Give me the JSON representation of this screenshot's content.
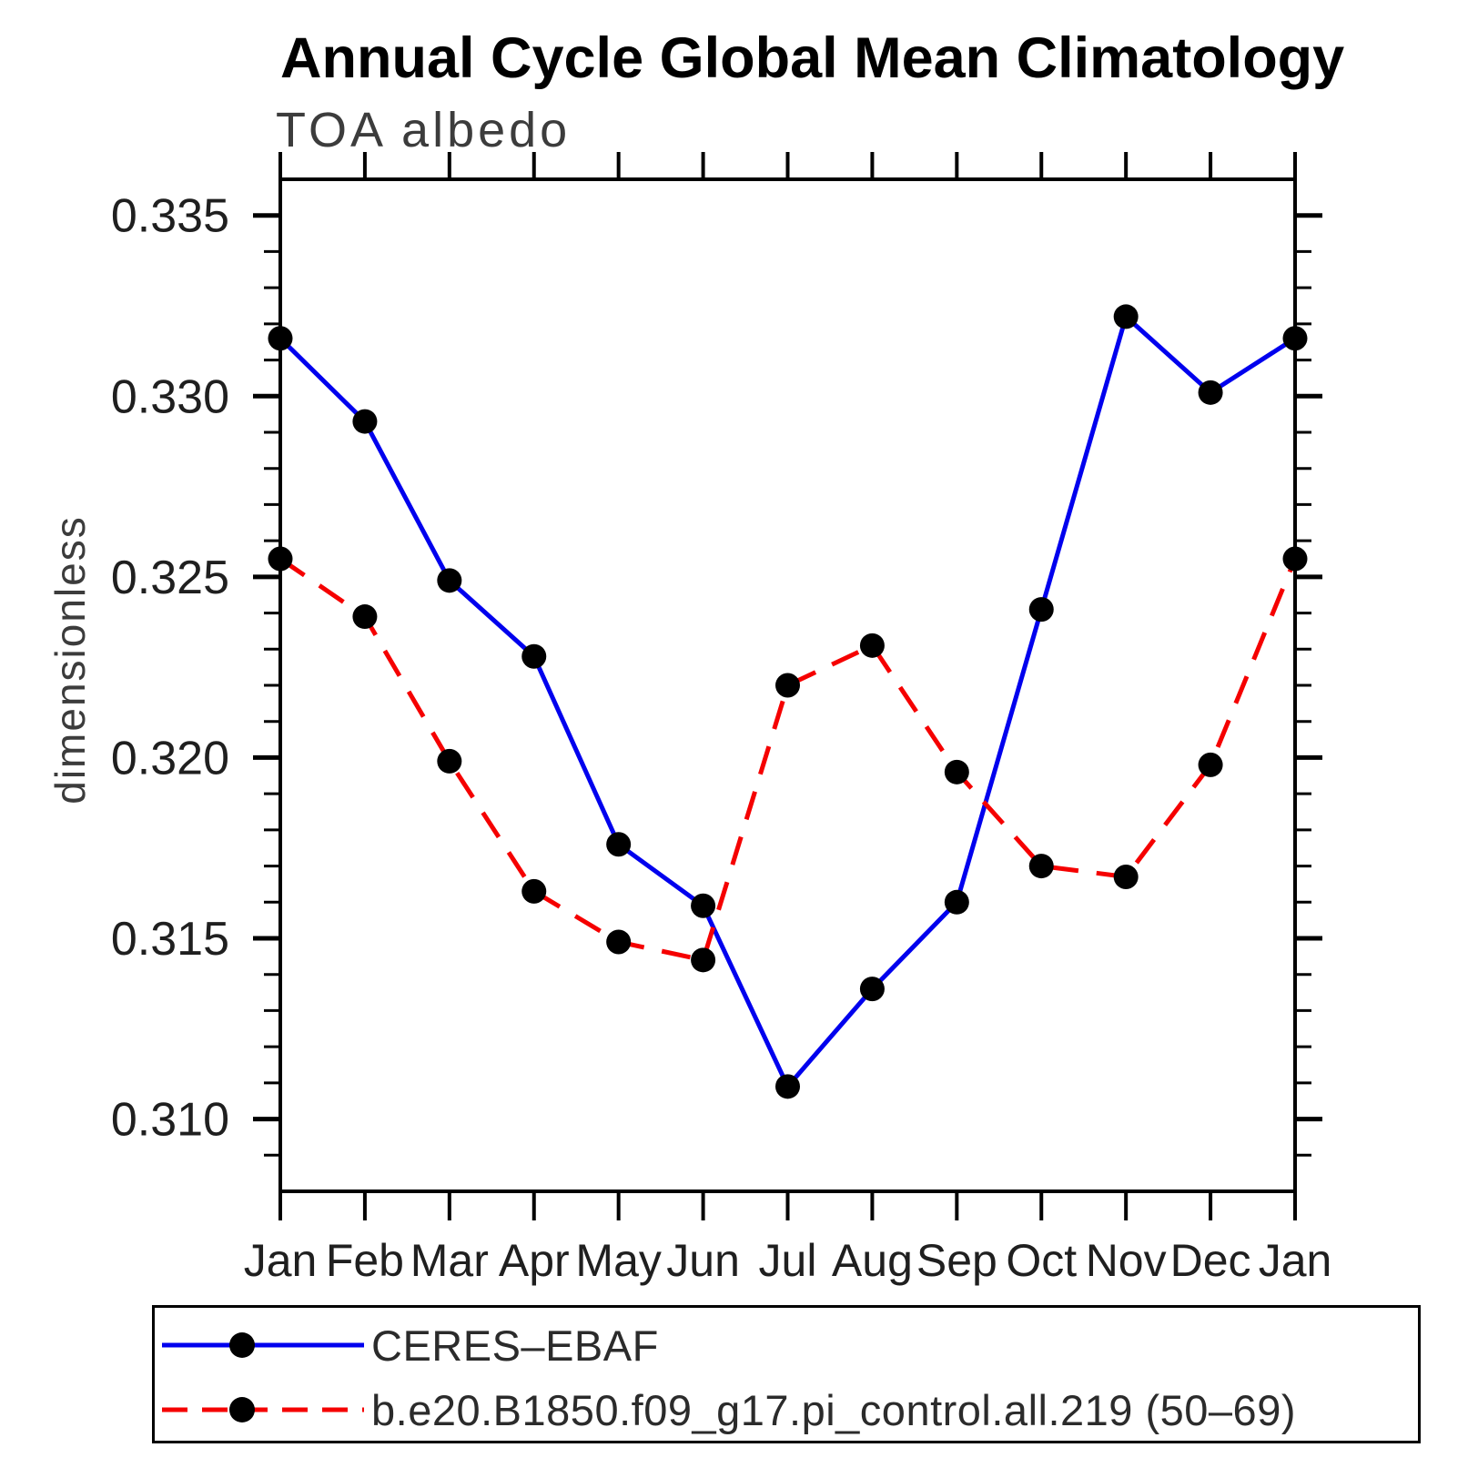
{
  "title": "Annual Cycle Global Mean Climatology",
  "subtitle": "TOA albedo",
  "ylabel": "dimensionless",
  "colors": {
    "series1": "#0000ee",
    "series2": "#f50000",
    "marker": "#000000",
    "axis": "#000000",
    "label_text": "#1f1f1f",
    "muted_text": "#3c3c3c"
  },
  "chart_data": {
    "type": "line",
    "title": "Annual Cycle Global Mean Climatology",
    "subtitle": "TOA albedo",
    "xlabel": "",
    "ylabel": "dimensionless",
    "categories": [
      "Jan",
      "Feb",
      "Mar",
      "Apr",
      "May",
      "Jun",
      "Jul",
      "Aug",
      "Sep",
      "Oct",
      "Nov",
      "Dec",
      "Jan"
    ],
    "series": [
      {
        "name": "CERES–EBAF",
        "color": "#0000ee",
        "line_style": "solid",
        "marker": "circle",
        "marker_color": "#000000",
        "values": [
          0.3316,
          0.3293,
          0.3249,
          0.3228,
          0.3176,
          0.3159,
          0.3109,
          0.3136,
          0.316,
          0.3241,
          0.3322,
          0.3301,
          0.3316
        ]
      },
      {
        "name": "b.e20.B1850.f09_g17.pi_control.all.219 (50–69)",
        "color": "#f50000",
        "line_style": "dashed",
        "marker": "circle",
        "marker_color": "#000000",
        "values": [
          0.3255,
          0.3239,
          0.3199,
          0.3163,
          0.3149,
          0.3144,
          0.322,
          0.3231,
          0.3196,
          0.317,
          0.3167,
          0.3198,
          0.3255
        ]
      }
    ],
    "ylim": [
      0.308,
      0.336
    ],
    "yticks_major": [
      0.31,
      0.315,
      0.32,
      0.325,
      0.33,
      0.335
    ],
    "ytick_labels": [
      "0.310",
      "0.315",
      "0.320",
      "0.325",
      "0.330",
      "0.335"
    ],
    "ytick_minor_step": 0.001,
    "grid": false,
    "tick_direction": "out",
    "legend_position": "bottom"
  },
  "legend": {
    "entries": [
      {
        "label": "CERES–EBAF"
      },
      {
        "label": "b.e20.B1850.f09_g17.pi_control.all.219 (50–69)"
      }
    ]
  }
}
